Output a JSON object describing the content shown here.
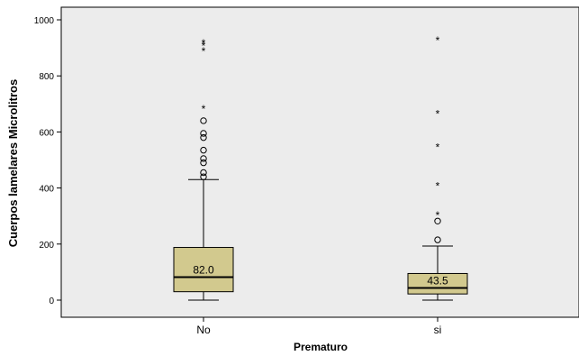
{
  "chart_data": {
    "type": "boxplot",
    "title": "",
    "xlabel": "Prematuro",
    "ylabel": "Cuerpos lamelares Microlitros",
    "ylim": [
      -50,
      1030
    ],
    "yticks": [
      0,
      200,
      400,
      600,
      800,
      1000
    ],
    "ytick_labels": [
      "0",
      "200",
      "400",
      "600",
      "800",
      "1000"
    ],
    "grid": false,
    "categories": [
      "No",
      "si"
    ],
    "boxes": [
      {
        "category": "No",
        "min": 0,
        "q1": 30,
        "median": 82.0,
        "median_label": "82.0",
        "q3": 188,
        "max": 430,
        "outliers": [
          440,
          455,
          490,
          505,
          535,
          580,
          595,
          640
        ],
        "extremes": [
          685,
          890,
          910,
          920
        ]
      },
      {
        "category": "si",
        "min": 0,
        "q1": 22,
        "median": 43.5,
        "median_label": "43.5",
        "q3": 95,
        "max": 193,
        "outliers": [
          215,
          282
        ],
        "extremes": [
          305,
          410,
          548,
          668,
          930
        ]
      }
    ],
    "colors": {
      "plot_background": "#ececec",
      "box_fill": "#d2c98e",
      "box_stroke": "#000000",
      "frame": "#000000"
    }
  }
}
